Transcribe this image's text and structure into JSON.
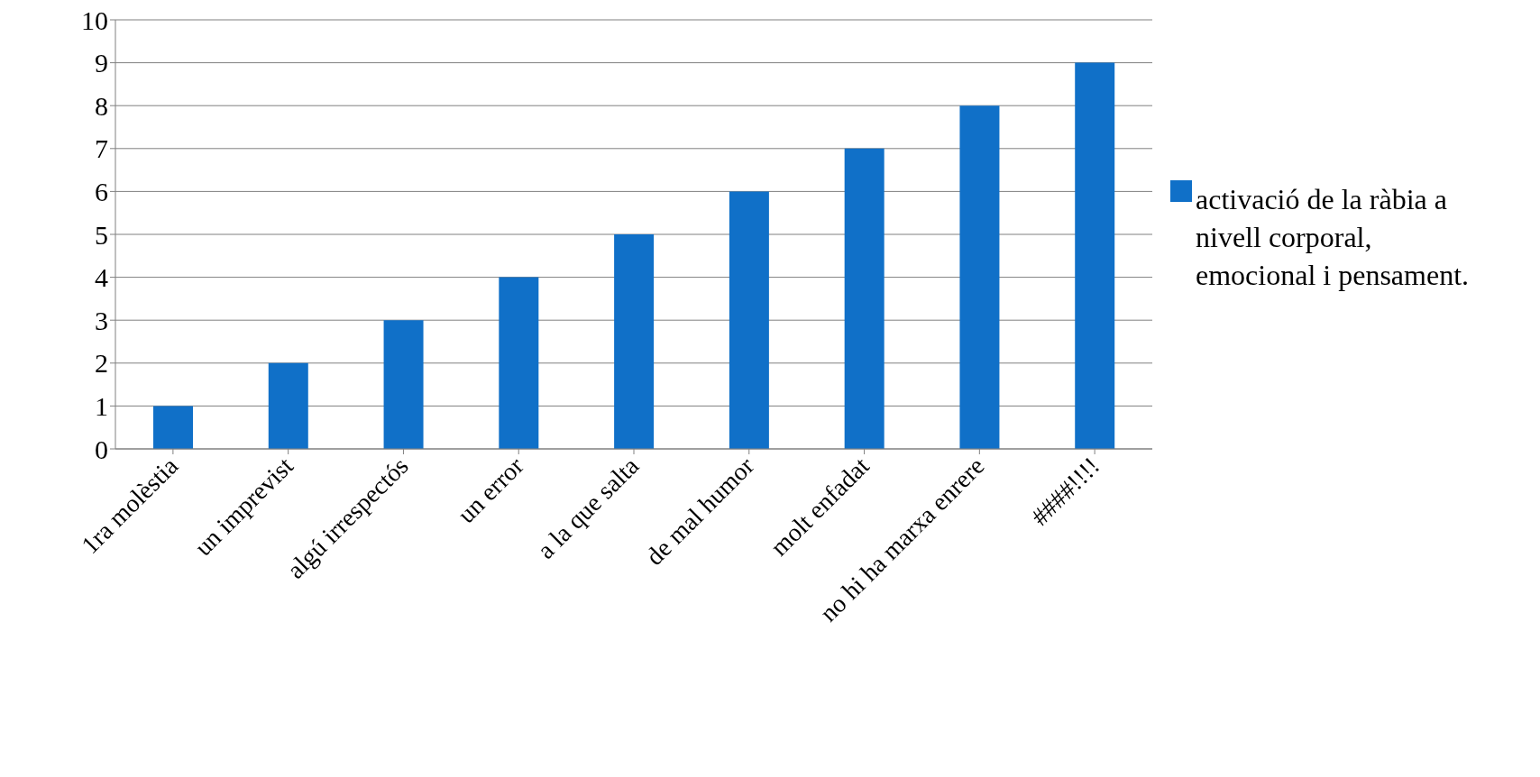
{
  "chart_data": {
    "type": "bar",
    "categories": [
      "1ra molèstia",
      "un imprevist",
      "algú irrespectós",
      "un error",
      "a la que salta",
      "de mal humor",
      "molt enfadat",
      "no hi ha marxa enrere",
      "####!!!!"
    ],
    "series": [
      {
        "name": "activació de la ràbia a nivell corporal, emocional i pensament.",
        "color": "#1070c8",
        "values": [
          1,
          2,
          3,
          4,
          5,
          6,
          7,
          8,
          9
        ]
      }
    ],
    "ylim": [
      0,
      10
    ],
    "yticks": [
      0,
      1,
      2,
      3,
      4,
      5,
      6,
      7,
      8,
      9,
      10
    ],
    "grid": "y",
    "legend": "right"
  }
}
